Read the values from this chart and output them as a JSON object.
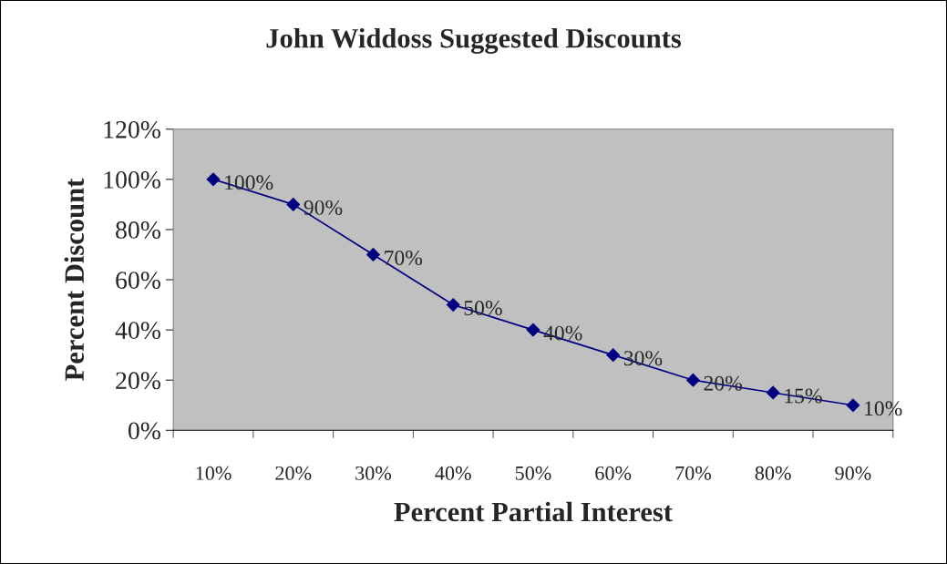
{
  "chart_data": {
    "type": "line",
    "title": "John Widdoss Suggested Discounts",
    "xlabel": "Percent Partial Interest",
    "ylabel": "Percent Discount",
    "categories": [
      "10%",
      "20%",
      "30%",
      "40%",
      "50%",
      "60%",
      "70%",
      "80%",
      "90%"
    ],
    "series": [
      {
        "color": "#000080",
        "values": [
          100,
          90,
          70,
          50,
          40,
          30,
          20,
          15,
          10
        ],
        "value_labels": [
          "100%",
          "90%",
          "70%",
          "50%",
          "40%",
          "30%",
          "20%",
          "15%",
          "10%"
        ]
      }
    ],
    "ylim": [
      0,
      120
    ],
    "yticks": [
      {
        "value": 0,
        "label": "0%"
      },
      {
        "value": 20,
        "label": "20%"
      },
      {
        "value": 40,
        "label": "40%"
      },
      {
        "value": 60,
        "label": "60%"
      },
      {
        "value": 80,
        "label": "80%"
      },
      {
        "value": 100,
        "label": "100%"
      },
      {
        "value": 120,
        "label": "120%"
      }
    ],
    "marker": "diamond",
    "line_style": "solid",
    "grid": false,
    "legend": false
  }
}
